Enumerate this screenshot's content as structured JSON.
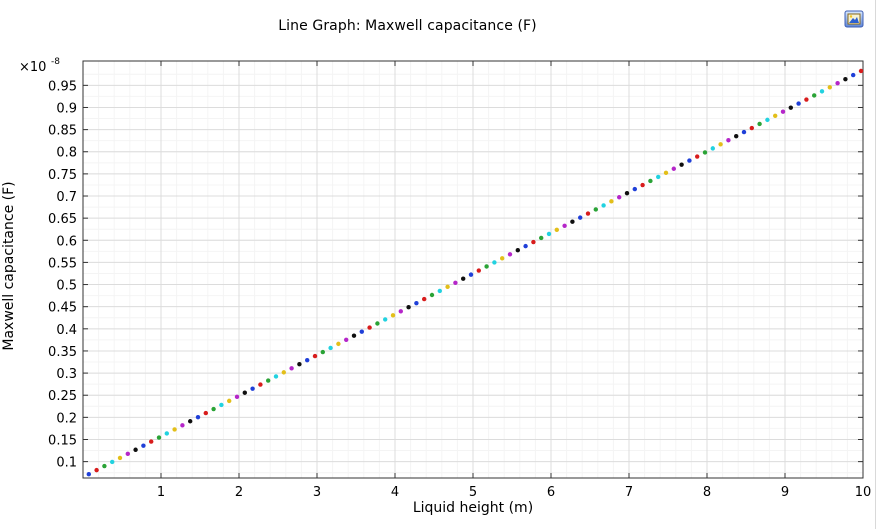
{
  "chart_data": {
    "type": "scatter",
    "title": "Line Graph: Maxwell capacitance (F)",
    "xlabel": "Liquid height (m)",
    "ylabel": "Maxwell capacitance (F)",
    "y_multiplier": "×10",
    "y_exponent": "-8",
    "xlim": [
      0,
      10
    ],
    "ylim": [
      0.063,
      1.005
    ],
    "x_ticks": [
      1,
      2,
      3,
      4,
      5,
      6,
      7,
      8,
      9,
      10
    ],
    "y_ticks": [
      0.1,
      0.15,
      0.2,
      0.25,
      0.3,
      0.35,
      0.4,
      0.45,
      0.5,
      0.55,
      0.6,
      0.65,
      0.7,
      0.75,
      0.8,
      0.85,
      0.9,
      0.95
    ],
    "grid": true,
    "x": [
      0.1,
      0.2,
      0.3,
      0.4,
      0.5,
      0.6,
      0.7,
      0.8,
      0.9,
      1.0,
      1.1,
      1.2,
      1.3,
      1.4,
      1.5,
      1.6,
      1.7,
      1.8,
      1.9,
      2.0,
      2.1,
      2.2,
      2.3,
      2.4,
      2.5,
      2.6,
      2.7,
      2.8,
      2.9,
      3.0,
      3.1,
      3.2,
      3.3,
      3.4,
      3.5,
      3.6,
      3.7,
      3.8,
      3.9,
      4.0,
      4.1,
      4.2,
      4.3,
      4.4,
      4.5,
      4.6,
      4.7,
      4.8,
      4.9,
      5.0,
      5.1,
      5.2,
      5.3,
      5.4,
      5.5,
      5.6,
      5.7,
      5.8,
      5.9,
      6.0,
      6.1,
      6.2,
      6.3,
      6.4,
      6.5,
      6.6,
      6.7,
      6.8,
      6.9,
      7.0,
      7.1,
      7.2,
      7.3,
      7.4,
      7.5,
      7.6,
      7.7,
      7.8,
      7.9,
      8.0,
      8.1,
      8.2,
      8.3,
      8.4,
      8.5,
      8.6,
      8.7,
      8.8,
      8.9,
      9.0,
      9.1,
      9.2,
      9.3,
      9.4,
      9.5,
      9.6,
      9.7,
      9.8,
      9.9,
      10.0
    ],
    "y": [
      0.0716,
      0.0808,
      0.09,
      0.0992,
      0.1084,
      0.1176,
      0.1268,
      0.136,
      0.1452,
      0.1544,
      0.1636,
      0.1728,
      0.182,
      0.1912,
      0.2004,
      0.2096,
      0.2188,
      0.228,
      0.2372,
      0.2464,
      0.2556,
      0.2648,
      0.274,
      0.2832,
      0.2924,
      0.3016,
      0.3108,
      0.32,
      0.3292,
      0.3384,
      0.3476,
      0.3568,
      0.366,
      0.3752,
      0.3844,
      0.3936,
      0.4028,
      0.412,
      0.4212,
      0.4304,
      0.4396,
      0.4488,
      0.458,
      0.4672,
      0.4764,
      0.4856,
      0.4948,
      0.504,
      0.5132,
      0.5224,
      0.5316,
      0.5408,
      0.55,
      0.5592,
      0.5684,
      0.5776,
      0.5868,
      0.596,
      0.6052,
      0.6144,
      0.6236,
      0.6328,
      0.642,
      0.6512,
      0.6604,
      0.6696,
      0.6788,
      0.688,
      0.6972,
      0.7064,
      0.7156,
      0.7248,
      0.734,
      0.7432,
      0.7524,
      0.7616,
      0.7708,
      0.78,
      0.7892,
      0.7984,
      0.8076,
      0.8168,
      0.826,
      0.8352,
      0.8444,
      0.8536,
      0.8628,
      0.872,
      0.8812,
      0.8904,
      0.8996,
      0.9088,
      0.918,
      0.9272,
      0.9364,
      0.9456,
      0.9548,
      0.964,
      0.9732,
      0.9824
    ],
    "point_colors": [
      "#1f3fd8",
      "#d81c1c",
      "#2aa336",
      "#22d2e0",
      "#e3bf19",
      "#b526c9",
      "#0f0f0f"
    ]
  },
  "toolbar": {
    "export_icon": "image-export-icon"
  }
}
